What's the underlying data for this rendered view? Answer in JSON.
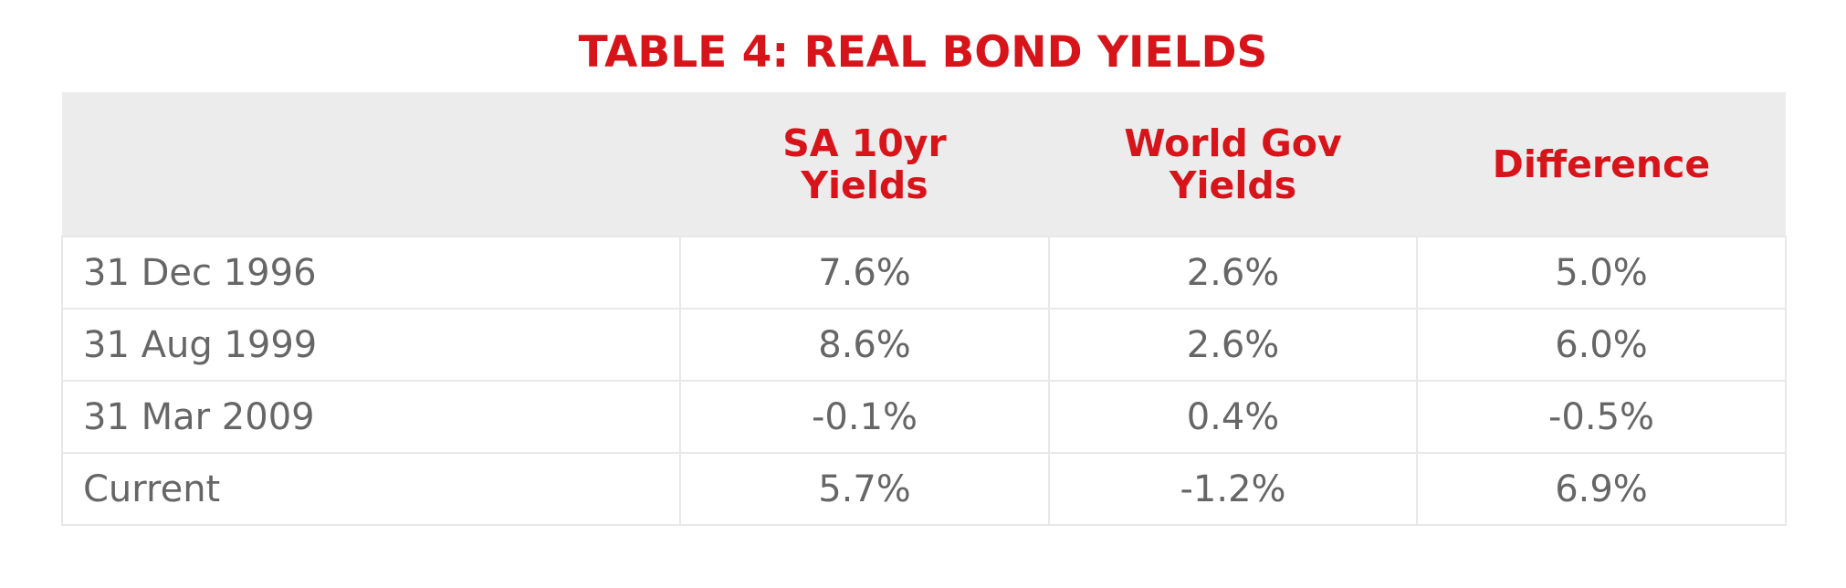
{
  "title": "TABLE 4: REAL BOND YIELDS",
  "table": {
    "columns": [
      "SA 10yr Yields",
      "World Gov Yields",
      "Difference"
    ],
    "rows": [
      [
        "31 Dec 1996",
        "7.6%",
        "2.6%",
        "5.0%"
      ],
      [
        "31 Aug 1999",
        "8.6%",
        "2.6%",
        "6.0%"
      ],
      [
        "31 Mar 2009",
        "-0.1%",
        "0.4%",
        "-0.5%"
      ],
      [
        "Current",
        "5.7%",
        "-1.2%",
        "6.9%"
      ]
    ]
  }
}
